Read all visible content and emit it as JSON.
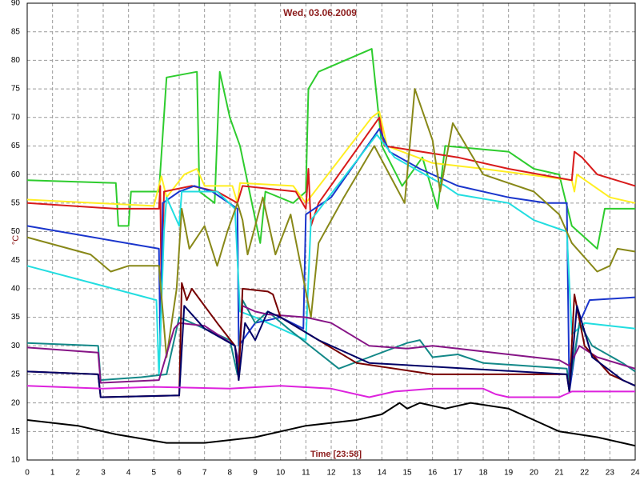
{
  "chart_data": {
    "type": "line",
    "title": "Wed, 03.06.2009",
    "xlabel": "Time [23:58]",
    "ylabel": "°C",
    "xlim": [
      0,
      24
    ],
    "ylim": [
      10,
      90
    ],
    "xticks": [
      0,
      1,
      2,
      3,
      4,
      5,
      6,
      7,
      8,
      9,
      10,
      11,
      12,
      13,
      14,
      15,
      16,
      17,
      18,
      19,
      20,
      21,
      22,
      23,
      24
    ],
    "yticks": [
      10,
      15,
      20,
      25,
      30,
      35,
      40,
      45,
      50,
      55,
      60,
      65,
      70,
      75,
      80,
      85,
      90
    ],
    "grid": true,
    "series": [
      {
        "color": "#2ecc2e",
        "x": [
          0,
          3.5,
          3.6,
          4.0,
          4.1,
          5.2,
          5.5,
          6.7,
          6.8,
          7.4,
          7.6,
          8.0,
          8.4,
          9.2,
          9.4,
          10.5,
          11.0,
          11.1,
          11.5,
          13.6,
          14.0,
          14.8,
          15.6,
          16.2,
          16.5,
          19.0,
          20.0,
          21.0,
          21.5,
          22.5,
          22.8,
          24
        ],
        "values": [
          59,
          58.5,
          51,
          51,
          57,
          57,
          77,
          78,
          57,
          55,
          78,
          70,
          65,
          48,
          57,
          55,
          57,
          75,
          78,
          82,
          65,
          58,
          63,
          54,
          65,
          64,
          61,
          60,
          51,
          47,
          54,
          54
        ]
      },
      {
        "color": "#ffee22",
        "x": [
          0,
          5.0,
          5.3,
          5.5,
          6.2,
          6.7,
          7.0,
          8.1,
          8.3,
          8.4,
          10.5,
          11.0,
          13.6,
          13.9,
          14.2,
          16.0,
          18.0,
          21.5,
          21.6,
          21.7,
          23.0,
          24
        ],
        "values": [
          55.6,
          54.5,
          59.7,
          56,
          60,
          61,
          58,
          58,
          55,
          58.5,
          58,
          55,
          70,
          71,
          65,
          62,
          61,
          59,
          57,
          60,
          56,
          55
        ]
      },
      {
        "color": "#d81a1a",
        "x": [
          0,
          3.5,
          5.2,
          5.25,
          5.3,
          5.4,
          6.5,
          7.5,
          8.3,
          8.5,
          10.6,
          11.0,
          11.1,
          11.2,
          11.5,
          13.9,
          14.1,
          17.0,
          19.0,
          21.5,
          21.6,
          21.9,
          22.5,
          24
        ],
        "values": [
          55,
          54,
          54,
          58,
          38,
          57,
          58,
          57,
          55,
          58,
          57,
          54,
          61,
          51,
          55,
          70,
          65,
          63,
          61,
          59,
          64,
          63,
          60,
          58
        ]
      },
      {
        "color": "#1a35cc",
        "x": [
          0,
          5.2,
          5.25,
          5.35,
          6.0,
          6.6,
          7.3,
          8.3,
          8.35,
          9.0,
          10.0,
          10.9,
          11.0,
          12.0,
          13.9,
          14.3,
          15.5,
          17.0,
          19.0,
          20.5,
          21.3,
          21.4,
          21.8,
          22.2,
          24
        ],
        "values": [
          51,
          47,
          30,
          55,
          57,
          58,
          57,
          54,
          30,
          34,
          35,
          33,
          53,
          56,
          68,
          64,
          61,
          58,
          56,
          55,
          55,
          22,
          34,
          38,
          38.5
        ]
      },
      {
        "color": "#22dde0",
        "x": [
          0,
          5.1,
          5.2,
          5.4,
          5.5,
          6.0,
          6.1,
          7.5,
          8.2,
          8.4,
          9.0,
          10.0,
          11.0,
          11.2,
          13.8,
          14.5,
          16.5,
          17.0,
          19.0,
          20.0,
          21.3,
          21.5,
          22.0,
          23.0,
          24
        ],
        "values": [
          44,
          38,
          25,
          50,
          56,
          51,
          57,
          57,
          54,
          36,
          35,
          33,
          31,
          52,
          67,
          63,
          58,
          56.5,
          55,
          52,
          50,
          32,
          34,
          33.5,
          33
        ]
      },
      {
        "color": "#888818",
        "x": [
          0,
          2.5,
          3.3,
          4.0,
          5.2,
          5.5,
          5.9,
          6.1,
          6.4,
          7.0,
          7.5,
          7.9,
          8.3,
          8.5,
          8.7,
          9.3,
          9.8,
          10.4,
          10.8,
          11.2,
          11.5,
          12.5,
          13.7,
          14.3,
          14.9,
          15.3,
          16.0,
          16.3,
          16.8,
          18.0,
          20.0,
          21.0,
          21.5,
          22.5,
          23.0,
          23.3,
          24
        ],
        "values": [
          49,
          46,
          43,
          44,
          44,
          28,
          40,
          54,
          47,
          51,
          44,
          50,
          55,
          52,
          46,
          56,
          46,
          53,
          44,
          35,
          48,
          56,
          65,
          60,
          55,
          75,
          66,
          57,
          69,
          60,
          57,
          53,
          48,
          43,
          44,
          47,
          46.5
        ]
      },
      {
        "color": "#138888",
        "x": [
          0,
          2.8,
          2.9,
          4.5,
          5.5,
          6.0,
          7.0,
          8.0,
          8.3,
          8.5,
          9.0,
          9.5,
          10.3,
          12.3,
          13.5,
          15.0,
          15.5,
          16.0,
          17.0,
          18.0,
          21.3,
          21.4,
          21.8,
          22.3,
          23.5,
          24
        ],
        "values": [
          30.5,
          30,
          24,
          24.5,
          25,
          35,
          33,
          31,
          25,
          38,
          34,
          36,
          33,
          26,
          28,
          30.5,
          31,
          28,
          28.5,
          27,
          26,
          23,
          34,
          30,
          27,
          25.5
        ]
      },
      {
        "color": "#861486",
        "x": [
          0,
          2.8,
          2.9,
          5.2,
          5.8,
          6.0,
          7.0,
          8.2,
          8.35,
          8.5,
          9.0,
          9.5,
          11.0,
          12.0,
          13.5,
          15.0,
          16.0,
          17.0,
          19.0,
          21.0,
          21.4,
          21.8,
          22.5,
          24
        ],
        "values": [
          29.7,
          28.8,
          23.5,
          24,
          33,
          34,
          33.5,
          30,
          27,
          37,
          36,
          35.5,
          35,
          34,
          30,
          29.5,
          30,
          29.5,
          28.5,
          27.5,
          26.5,
          30,
          28,
          26
        ]
      },
      {
        "color": "#770000",
        "x": [
          0,
          2.8,
          2.9,
          6.0,
          6.1,
          6.3,
          6.5,
          7.5,
          8.2,
          8.35,
          8.5,
          9.5,
          9.7,
          10.0,
          11.5,
          13.0,
          16.0,
          21.3,
          21.4,
          21.6,
          22.0,
          23.0,
          24
        ],
        "values": [
          25.5,
          25,
          21,
          21.3,
          41,
          38,
          40,
          34,
          30,
          24,
          40,
          39.5,
          39,
          35,
          31,
          27,
          25,
          25,
          22,
          39,
          30,
          25,
          23
        ]
      },
      {
        "color": "#000066",
        "x": [
          0,
          2.8,
          2.9,
          6.0,
          6.2,
          7.0,
          8.2,
          8.35,
          8.6,
          9.0,
          9.5,
          10.0,
          11.5,
          13.5,
          21.3,
          21.4,
          21.7,
          22.3,
          23.5,
          24
        ],
        "values": [
          25.5,
          25,
          21,
          21.3,
          37,
          33,
          30,
          24,
          34,
          31,
          36,
          35,
          31,
          27,
          25,
          22,
          37,
          28,
          24,
          23
        ]
      },
      {
        "color": "#dd22dd",
        "x": [
          0,
          3,
          5,
          8,
          10,
          12,
          13.5,
          14.5,
          16,
          18,
          18.5,
          19,
          21,
          21.5,
          24
        ],
        "values": [
          23,
          22.5,
          22.8,
          22.5,
          23,
          22.5,
          21,
          22,
          22.5,
          22.5,
          21.5,
          21,
          21,
          22,
          22
        ]
      },
      {
        "color": "#000000",
        "x": [
          0,
          2,
          3.5,
          5.5,
          7,
          9,
          11,
          13,
          14,
          14.7,
          15,
          15.5,
          16.5,
          17.5,
          19,
          20,
          21,
          22.5,
          23.5,
          24
        ],
        "values": [
          17,
          16,
          14.5,
          13,
          13,
          14,
          16,
          17,
          18,
          20,
          19,
          20,
          19,
          20,
          19,
          17,
          15,
          14,
          13,
          12.5
        ]
      }
    ]
  }
}
